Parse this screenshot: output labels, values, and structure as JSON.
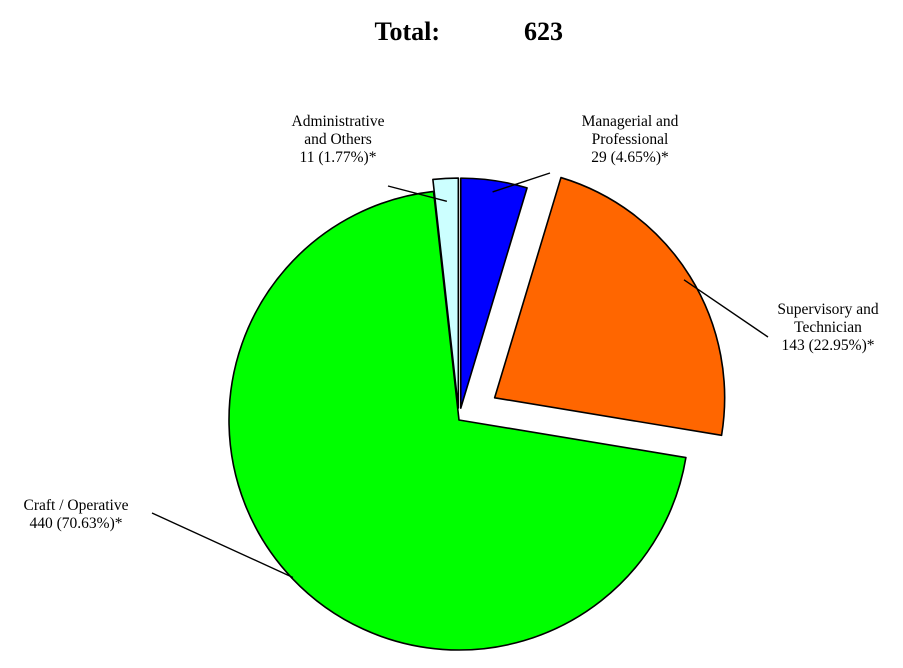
{
  "chart_data": {
    "type": "pie",
    "title_label": "Total:",
    "title_value": "623",
    "total": 623,
    "start_angle_deg": 0,
    "direction": "clockwise",
    "exploded": true,
    "slices": [
      {
        "category": "Managerial and Professional",
        "value": 29,
        "percent": 4.65,
        "color": "#0000FF",
        "label_lines": [
          "Managerial and",
          "Professional",
          "29 (4.65%)*"
        ]
      },
      {
        "category": "Supervisory and Technician",
        "value": 143,
        "percent": 22.95,
        "color": "#FF6600",
        "label_lines": [
          "Supervisory and",
          "Technician",
          "143 (22.95%)*"
        ]
      },
      {
        "category": "Craft / Operative",
        "value": 440,
        "percent": 70.63,
        "color": "#00FF00",
        "label_lines": [
          "Craft / Operative",
          "440 (70.63%)*"
        ]
      },
      {
        "category": "Administrative and Others",
        "value": 11,
        "percent": 1.77,
        "color": "#CCFFFF",
        "label_lines": [
          "Administrative",
          "and Others",
          "11 (1.77%)*"
        ]
      }
    ]
  }
}
